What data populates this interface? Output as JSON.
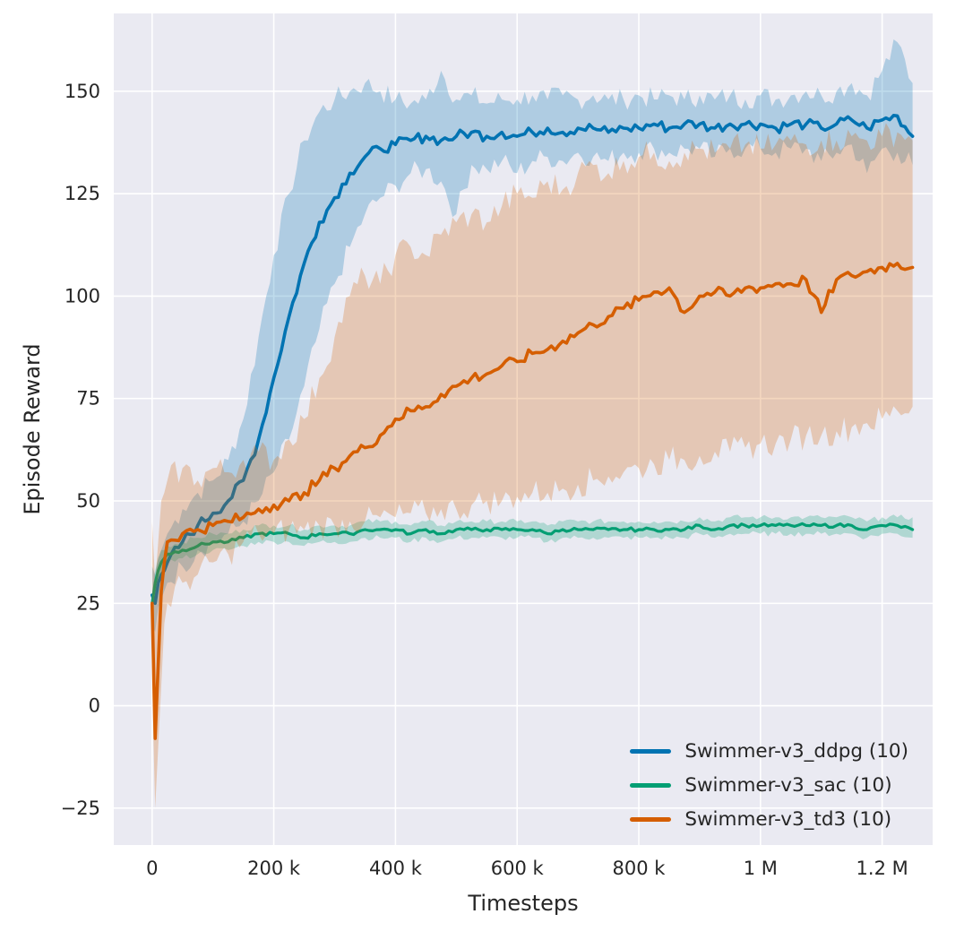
{
  "chart_data": {
    "type": "line",
    "title": "",
    "xlabel": "Timesteps",
    "ylabel": "Episode Reward",
    "grid": true,
    "legend_position": "lower right",
    "background": "#eaeaf2",
    "grid_color": "#ffffff",
    "text_color": "#262626",
    "xlim": [
      -63000,
      1283000
    ],
    "ylim": [
      -34,
      169
    ],
    "x_ticks": [
      0,
      200000,
      400000,
      600000,
      800000,
      1000000,
      1200000
    ],
    "x_tick_labels": [
      "0",
      "200 k",
      "400 k",
      "600 k",
      "800 k",
      "1 M",
      "1.2 M"
    ],
    "y_ticks": [
      -25,
      0,
      25,
      50,
      75,
      100,
      125,
      150
    ],
    "y_tick_labels": [
      "−25",
      "0",
      "25",
      "50",
      "75",
      "100",
      "125",
      "150"
    ],
    "x": [
      0,
      5000,
      10000,
      15000,
      20000,
      25000,
      50000,
      75000,
      100000,
      125000,
      150000,
      175000,
      200000,
      225000,
      250000,
      275000,
      300000,
      325000,
      350000,
      375000,
      400000,
      425000,
      450000,
      475000,
      500000,
      525000,
      550000,
      575000,
      600000,
      625000,
      650000,
      675000,
      700000,
      725000,
      750000,
      775000,
      800000,
      825000,
      850000,
      875000,
      900000,
      925000,
      950000,
      975000,
      1000000,
      1025000,
      1050000,
      1075000,
      1100000,
      1125000,
      1150000,
      1175000,
      1200000,
      1225000,
      1250000
    ],
    "series": [
      {
        "name": "Swimmer-v3_ddpg (10)",
        "color": "#0173b2",
        "mean": [
          27,
          25,
          30,
          32,
          33,
          35,
          40,
          44,
          47,
          50,
          55,
          65,
          80,
          95,
          108,
          118,
          124,
          130,
          134,
          136,
          137,
          138,
          139,
          138,
          139,
          140,
          139,
          140,
          139,
          140,
          141,
          140,
          141,
          141,
          140,
          141,
          141,
          142,
          141,
          142,
          142,
          141,
          142,
          142,
          142,
          141,
          142,
          142,
          141,
          142,
          143,
          141,
          143,
          144,
          139
        ],
        "lower": [
          20,
          18,
          24,
          26,
          28,
          30,
          34,
          38,
          40,
          42,
          45,
          50,
          57,
          65,
          78,
          92,
          103,
          112,
          120,
          124,
          127,
          130,
          131,
          128,
          120,
          132,
          131,
          133,
          130,
          133,
          134,
          133,
          135,
          134,
          133,
          135,
          135,
          136,
          135,
          136,
          136,
          134,
          136,
          136,
          136,
          135,
          136,
          136,
          133,
          135,
          137,
          130,
          136,
          135,
          132
        ],
        "upper": [
          34,
          32,
          36,
          38,
          40,
          42,
          48,
          52,
          55,
          60,
          70,
          90,
          110,
          125,
          138,
          145,
          148,
          150,
          152,
          150,
          148,
          147,
          148,
          155,
          148,
          149,
          147,
          148,
          148,
          149,
          148,
          149,
          148,
          149,
          148,
          148,
          149,
          148,
          149,
          148,
          149,
          148,
          149,
          148,
          149,
          148,
          149,
          150,
          149,
          150,
          152,
          149,
          155,
          162,
          152
        ]
      },
      {
        "name": "Swimmer-v3_sac (10)",
        "color": "#029e73",
        "mean": [
          25,
          30,
          33,
          35,
          36,
          37,
          38,
          39,
          40,
          40,
          41,
          42,
          42,
          42,
          41,
          42,
          42,
          42,
          43,
          43,
          43,
          42,
          43,
          42,
          43,
          43,
          43,
          43,
          43,
          43,
          42,
          43,
          43,
          43,
          43,
          43,
          43,
          43,
          43,
          43,
          44,
          43,
          44,
          44,
          44,
          44,
          44,
          44,
          44,
          44,
          44,
          43,
          44,
          44,
          43
        ],
        "lower": [
          23,
          27,
          30,
          32,
          34,
          35,
          36,
          37,
          38,
          38,
          39,
          40,
          40,
          40,
          39,
          40,
          40,
          40,
          41,
          41,
          41,
          40,
          41,
          40,
          41,
          41,
          41,
          41,
          41,
          41,
          40,
          41,
          41,
          41,
          41,
          41,
          41,
          41,
          41,
          41,
          42,
          41,
          42,
          42,
          42,
          42,
          42,
          42,
          42,
          42,
          42,
          41,
          42,
          42,
          41
        ],
        "upper": [
          27,
          33,
          36,
          38,
          38,
          39,
          40,
          41,
          42,
          42,
          43,
          44,
          44,
          44,
          43,
          44,
          44,
          44,
          45,
          45,
          45,
          44,
          45,
          44,
          45,
          45,
          45,
          45,
          45,
          45,
          44,
          45,
          45,
          45,
          45,
          45,
          45,
          45,
          45,
          45,
          46,
          45,
          46,
          46,
          46,
          46,
          46,
          46,
          46,
          46,
          46,
          45,
          46,
          46,
          46
        ]
      },
      {
        "name": "Swimmer-v3_td3 (10)",
        "color": "#d55e00",
        "mean": [
          25,
          -8,
          10,
          28,
          35,
          40,
          42,
          43,
          44,
          45,
          46,
          48,
          49,
          50,
          52,
          55,
          58,
          61,
          63,
          66,
          70,
          72,
          73,
          76,
          78,
          80,
          81,
          83,
          84,
          86,
          87,
          89,
          91,
          93,
          95,
          97,
          99,
          101,
          102,
          96,
          100,
          101,
          100,
          102,
          102,
          103,
          103,
          104,
          96,
          104,
          105,
          106,
          107,
          108,
          107
        ],
        "lower": [
          5,
          -25,
          -10,
          5,
          20,
          25,
          30,
          32,
          35,
          37,
          40,
          42,
          42,
          43,
          43,
          44,
          44,
          45,
          45,
          46,
          46,
          47,
          47,
          48,
          48,
          49,
          50,
          50,
          51,
          52,
          52,
          53,
          54,
          55,
          56,
          57,
          58,
          59,
          60,
          60,
          61,
          62,
          62,
          63,
          64,
          64,
          65,
          66,
          66,
          67,
          68,
          69,
          70,
          72,
          73
        ],
        "upper": [
          45,
          30,
          40,
          50,
          52,
          55,
          58,
          55,
          58,
          57,
          60,
          62,
          60,
          65,
          70,
          80,
          90,
          100,
          105,
          103,
          110,
          112,
          110,
          115,
          118,
          120,
          118,
          122,
          125,
          124,
          128,
          126,
          130,
          132,
          130,
          133,
          134,
          135,
          133,
          135,
          136,
          135,
          136,
          137,
          136,
          137,
          138,
          137,
          138,
          138,
          139,
          138,
          139,
          140,
          138
        ]
      }
    ]
  }
}
